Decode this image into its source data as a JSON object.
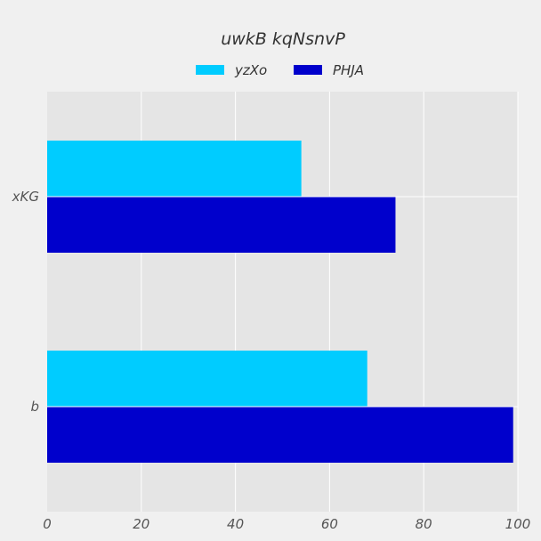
{
  "chart_data": {
    "type": "bar",
    "orientation": "horizontal",
    "title": "uwkB kqNsnvP",
    "xlabel": "",
    "ylabel": "",
    "categories": [
      "xKG",
      "b"
    ],
    "series": [
      {
        "name": "yzXo",
        "values": [
          54,
          68
        ],
        "color": "#00ccff"
      },
      {
        "name": "PHJA",
        "values": [
          74,
          99
        ],
        "color": "#0000cc"
      }
    ],
    "xlim": [
      0,
      100
    ],
    "xticks": [
      0,
      20,
      40,
      60,
      80,
      100
    ],
    "grid": true,
    "legend_position": "top-center",
    "background": "#f0f0f0",
    "plot_background": "#e5e5e5",
    "grid_color": "#ffffff"
  }
}
